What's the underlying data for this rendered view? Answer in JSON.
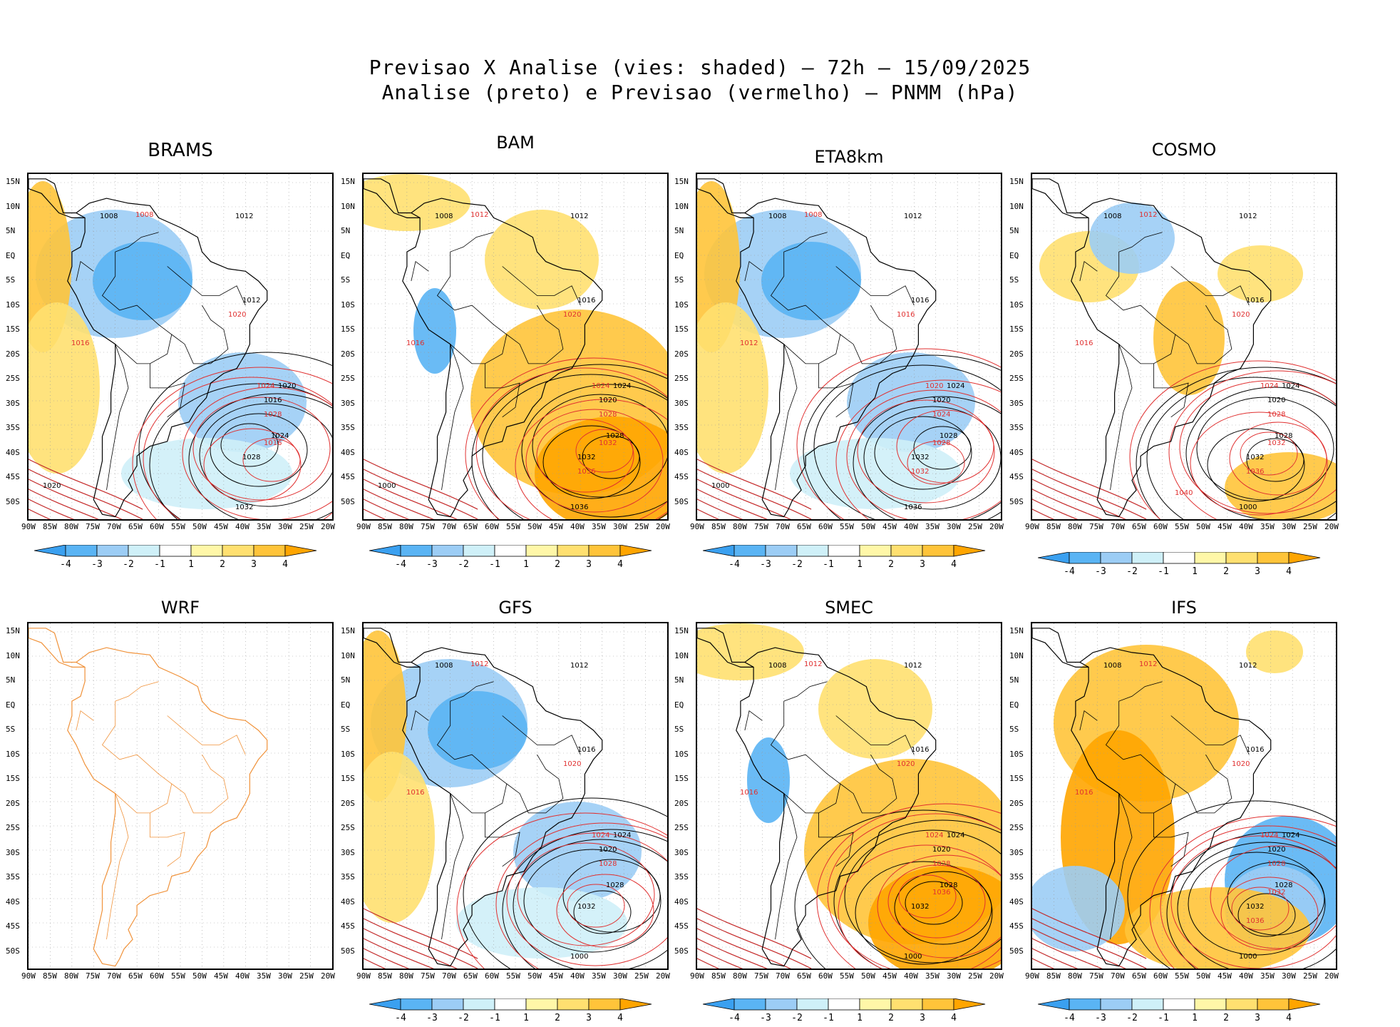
{
  "header": {
    "title_line1": "Previsao X Analise (vies: shaded) — 72h — 15/09/2025",
    "title_line2": "Analise (preto) e Previsao (vermelho) — PNMM (hPa)"
  },
  "axes": {
    "lat_labels": [
      "15N",
      "10N",
      "5N",
      "EQ",
      "5S",
      "10S",
      "15S",
      "20S",
      "25S",
      "30S",
      "35S",
      "40S",
      "45S",
      "50S"
    ],
    "lon_labels": [
      "90W",
      "85W",
      "80W",
      "75W",
      "70W",
      "65W",
      "60W",
      "55W",
      "50W",
      "45W",
      "40W",
      "35W",
      "30W",
      "25W",
      "20W"
    ]
  },
  "colorbar": {
    "labels": [
      "-4",
      "-3",
      "-2",
      "-1",
      "1",
      "2",
      "3",
      "4"
    ],
    "colors": [
      "#3aa0f0",
      "#5ab4f4",
      "#9ccdf5",
      "#cff0f8",
      "#ffffff",
      "#fff7a8",
      "#ffe070",
      "#ffc43a",
      "#ffa500"
    ]
  },
  "colors": {
    "analysis_contour": "#000000",
    "forecast_contour": "#e03030",
    "coastline_wrf": "#f0923a",
    "coastline": "#000000"
  },
  "panels": [
    {
      "name": "BRAMS",
      "has_data": true,
      "bias": "neg",
      "labels_black": [
        "1008",
        "1012",
        "1012",
        "1016",
        "1020",
        "1024",
        "1028",
        "1032",
        "1020"
      ],
      "labels_red": [
        "1008",
        "1016",
        "1020",
        "1024",
        "1028",
        "1016"
      ]
    },
    {
      "name": "BAM",
      "has_data": true,
      "bias": "pos",
      "labels_black": [
        "1008",
        "1012",
        "1016",
        "1020",
        "1024",
        "1028",
        "1032",
        "1036",
        "1000"
      ],
      "labels_red": [
        "1012",
        "1016",
        "1020",
        "1024",
        "1028",
        "1032",
        "1036"
      ]
    },
    {
      "name": "ETA8km",
      "has_data": true,
      "bias": "neg",
      "labels_black": [
        "1008",
        "1012",
        "1016",
        "1020",
        "1024",
        "1028",
        "1032",
        "1036",
        "1000"
      ],
      "labels_red": [
        "1008",
        "1012",
        "1016",
        "1020",
        "1024",
        "1028",
        "1032"
      ]
    },
    {
      "name": "COSMO",
      "has_data": true,
      "bias": "mix",
      "labels_black": [
        "1008",
        "1012",
        "1016",
        "1020",
        "1024",
        "1028",
        "1032",
        "1000"
      ],
      "labels_red": [
        "1012",
        "1016",
        "1020",
        "1024",
        "1028",
        "1032",
        "1036",
        "1040"
      ]
    },
    {
      "name": "WRF",
      "has_data": false,
      "bias": "none",
      "labels_black": [],
      "labels_red": []
    },
    {
      "name": "GFS",
      "has_data": true,
      "bias": "neg",
      "labels_black": [
        "1008",
        "1012",
        "1016",
        "1020",
        "1024",
        "1028",
        "1032",
        "1000"
      ],
      "labels_red": [
        "1012",
        "1016",
        "1020",
        "1024",
        "1028"
      ]
    },
    {
      "name": "SMEC",
      "has_data": true,
      "bias": "pos",
      "labels_black": [
        "1008",
        "1012",
        "1016",
        "1020",
        "1024",
        "1028",
        "1032",
        "1000"
      ],
      "labels_red": [
        "1012",
        "1016",
        "1020",
        "1024",
        "1028",
        "1036"
      ]
    },
    {
      "name": "IFS",
      "has_data": true,
      "bias": "strongpos",
      "labels_black": [
        "1008",
        "1012",
        "1016",
        "1020",
        "1024",
        "1028",
        "1032",
        "1000"
      ],
      "labels_red": [
        "1012",
        "1016",
        "1020",
        "1024",
        "1028",
        "1032",
        "1036"
      ]
    }
  ]
}
